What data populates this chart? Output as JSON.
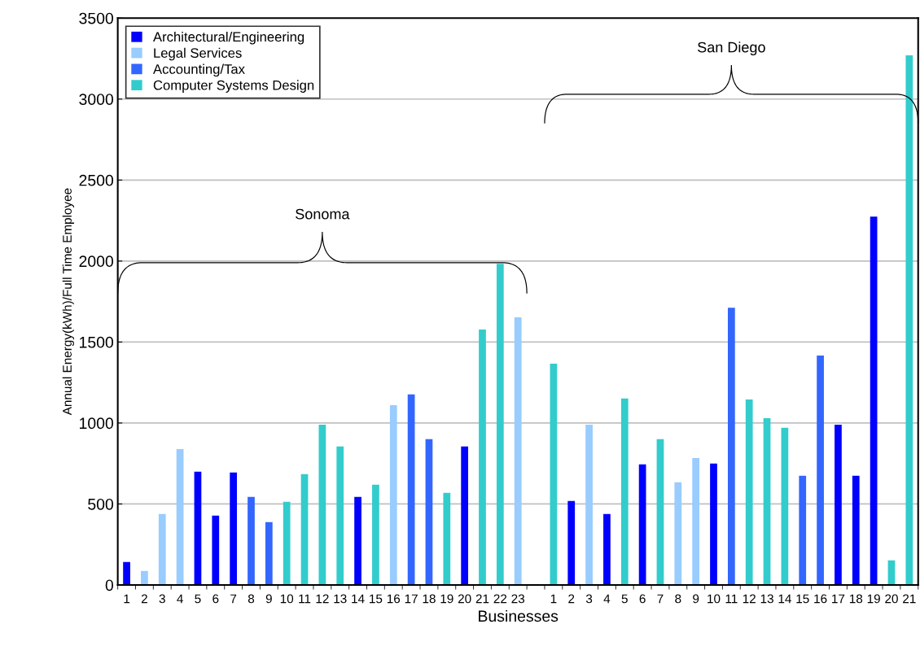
{
  "chart_data": {
    "type": "bar",
    "xlabel": "Businesses",
    "ylabel": "Annual Energy(kWh)/Full Time Employee",
    "categories": [
      "1",
      "2",
      "3",
      "4",
      "5",
      "6",
      "7",
      "8",
      "9",
      "10",
      "11",
      "12",
      "13",
      "14",
      "15",
      "16",
      "17",
      "18",
      "19",
      "20",
      "21",
      "22",
      "23",
      null,
      "1",
      "2",
      "3",
      "4",
      "5",
      "6",
      "7",
      "8",
      "9",
      "10",
      "11",
      "12",
      "13",
      "14",
      "15",
      "16",
      "17",
      "18",
      "19",
      "20",
      "21"
    ],
    "series": [
      {
        "name": "Architectural/Engineering",
        "color": "#0000ff",
        "values": [
          142,
          null,
          null,
          null,
          699,
          428,
          694,
          null,
          null,
          null,
          null,
          null,
          null,
          543,
          null,
          null,
          null,
          null,
          null,
          855,
          null,
          null,
          null,
          null,
          null,
          518,
          null,
          438,
          null,
          744,
          null,
          null,
          null,
          749,
          null,
          null,
          null,
          null,
          null,
          null,
          990,
          674,
          2274,
          null,
          null
        ]
      },
      {
        "name": "Legal Services",
        "color": "#99ccff",
        "values": [
          null,
          87,
          438,
          839,
          null,
          null,
          null,
          null,
          null,
          null,
          null,
          null,
          null,
          null,
          null,
          1110,
          null,
          null,
          null,
          null,
          null,
          null,
          1652,
          null,
          null,
          null,
          990,
          null,
          null,
          null,
          null,
          634,
          784,
          null,
          null,
          null,
          null,
          null,
          null,
          null,
          null,
          null,
          null,
          null,
          null
        ]
      },
      {
        "name": "Accounting/Tax",
        "color": "#3366ff",
        "values": [
          null,
          null,
          null,
          null,
          null,
          null,
          null,
          543,
          388,
          null,
          null,
          null,
          null,
          null,
          null,
          null,
          1176,
          900,
          null,
          null,
          null,
          null,
          null,
          null,
          null,
          null,
          null,
          null,
          null,
          null,
          null,
          null,
          null,
          null,
          1712,
          null,
          null,
          null,
          674,
          1416,
          null,
          null,
          null,
          null,
          null
        ]
      },
      {
        "name": "Computer Systems Design",
        "color": "#33cccc",
        "values": [
          null,
          null,
          null,
          null,
          null,
          null,
          null,
          null,
          null,
          513,
          684,
          990,
          855,
          null,
          619,
          null,
          null,
          null,
          569,
          null,
          1577,
          1983,
          null,
          null,
          1366,
          null,
          null,
          null,
          1151,
          null,
          900,
          null,
          null,
          null,
          null,
          1145,
          1030,
          970,
          null,
          null,
          null,
          null,
          null,
          152,
          3270
        ]
      }
    ],
    "ylim": [
      0,
      3500
    ],
    "yticks": [
      0,
      500,
      1000,
      1500,
      2000,
      2500,
      3000,
      3500
    ],
    "grid": "y",
    "legend": "top left",
    "annotations": [
      "Sonoma",
      "San Diego"
    ]
  }
}
